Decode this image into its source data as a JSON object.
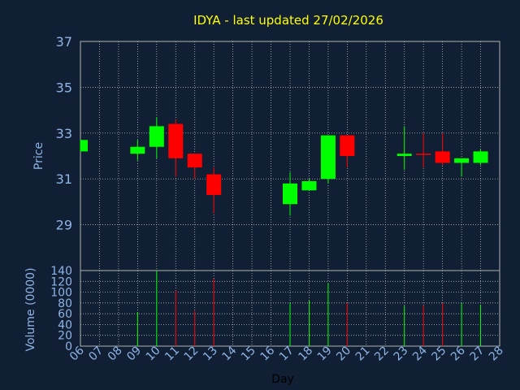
{
  "colors": {
    "background": "#101f33",
    "text": "#8fb4e6",
    "title": "#ffff00",
    "up": "#00ff00",
    "down": "#ff0000",
    "grid": "#d0d0d0",
    "frame": "#b0b0b0"
  },
  "chart_data": [
    {
      "type": "candlestick",
      "title": "IDYA - last updated 27/02/2026",
      "ylabel": "Price",
      "ylim": [
        27,
        37
      ],
      "yticks": [
        29,
        31,
        33,
        35,
        37
      ],
      "grid": true,
      "x": [
        "06",
        "07",
        "08",
        "09",
        "10",
        "11",
        "12",
        "13",
        "14",
        "15",
        "16",
        "17",
        "18",
        "19",
        "20",
        "21",
        "22",
        "23",
        "24",
        "25",
        "26",
        "27",
        "28"
      ],
      "candles": [
        {
          "day": "06",
          "open": 32.2,
          "high": 32.7,
          "low": 32.2,
          "close": 32.7
        },
        {
          "day": "09",
          "open": 32.1,
          "high": 32.7,
          "low": 31.8,
          "close": 32.4
        },
        {
          "day": "10",
          "open": 32.4,
          "high": 33.7,
          "low": 31.9,
          "close": 33.3
        },
        {
          "day": "11",
          "open": 33.4,
          "high": 33.6,
          "low": 31.1,
          "close": 31.9
        },
        {
          "day": "12",
          "open": 32.1,
          "high": 32.1,
          "low": 31.0,
          "close": 31.5
        },
        {
          "day": "13",
          "open": 31.2,
          "high": 31.5,
          "low": 29.5,
          "close": 30.3
        },
        {
          "day": "17",
          "open": 29.9,
          "high": 31.3,
          "low": 29.4,
          "close": 30.8
        },
        {
          "day": "18",
          "open": 30.5,
          "high": 31.0,
          "low": 30.5,
          "close": 30.9
        },
        {
          "day": "19",
          "open": 31.0,
          "high": 32.9,
          "low": 30.8,
          "close": 32.9
        },
        {
          "day": "20",
          "open": 32.9,
          "high": 32.9,
          "low": 31.5,
          "close": 32.0
        },
        {
          "day": "23",
          "open": 32.0,
          "high": 33.3,
          "low": 31.4,
          "close": 32.1
        },
        {
          "day": "24",
          "open": 32.1,
          "high": 33.0,
          "low": 31.5,
          "close": 32.05
        },
        {
          "day": "25",
          "open": 32.2,
          "high": 33.0,
          "low": 31.6,
          "close": 31.7
        },
        {
          "day": "26",
          "open": 31.7,
          "high": 31.9,
          "low": 31.1,
          "close": 31.9
        },
        {
          "day": "27",
          "open": 31.7,
          "high": 32.3,
          "low": 31.6,
          "close": 32.2
        }
      ]
    },
    {
      "type": "bar",
      "ylabel": "Volume (0000)",
      "xlabel": "Day",
      "ylim": [
        0,
        140
      ],
      "yticks": [
        0,
        20,
        40,
        60,
        80,
        100,
        120,
        140
      ],
      "grid": true,
      "categories": [
        "09",
        "10",
        "11",
        "12",
        "13",
        "17",
        "18",
        "19",
        "20",
        "23",
        "24",
        "25",
        "26",
        "27"
      ],
      "values": [
        63,
        140,
        103,
        65,
        125,
        80,
        85,
        117,
        80,
        75,
        75,
        80,
        80,
        77
      ],
      "directions": [
        "up",
        "up",
        "down",
        "down",
        "down",
        "up",
        "up",
        "up",
        "down",
        "up",
        "down",
        "down",
        "up",
        "up"
      ]
    }
  ]
}
